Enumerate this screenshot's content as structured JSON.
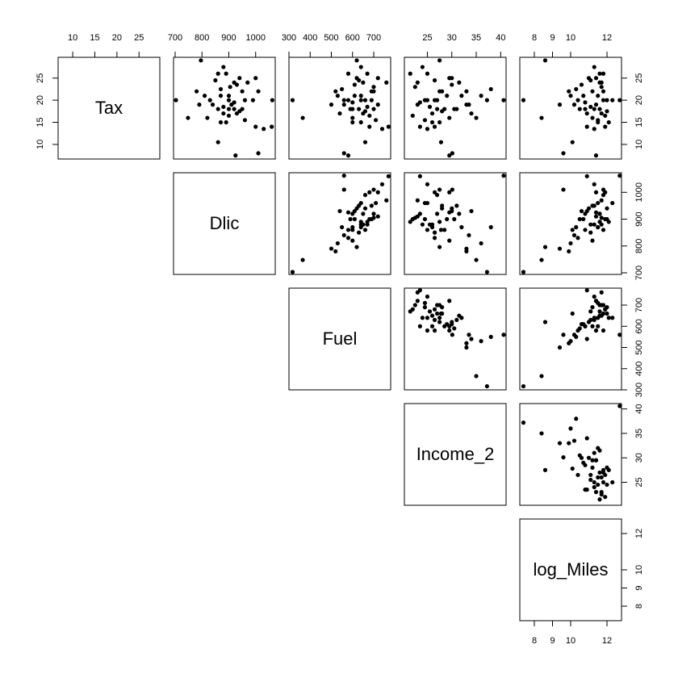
{
  "chart_data": {
    "type": "scatter_matrix",
    "point_color": "#000000",
    "variables": [
      {
        "name": "Tax",
        "lim": [
          6.7,
          29.7
        ],
        "ticks": [
          10,
          15,
          20,
          25
        ],
        "values": [
          20,
          8,
          7.5,
          29,
          14,
          20,
          10.5,
          15,
          16,
          27.5,
          26,
          25,
          24,
          23,
          22,
          22,
          21,
          21,
          20,
          20,
          20,
          19,
          19,
          18.5,
          18,
          18,
          18,
          17,
          17,
          16.5,
          16,
          15.5,
          15,
          14,
          13.5,
          24,
          25,
          22.5,
          21,
          19,
          23.5,
          26,
          17.5,
          20,
          18,
          24.5,
          22,
          19.5
        ]
      },
      {
        "name": "Dlic",
        "lim": [
          694,
          1073
        ],
        "ticks": [
          700,
          800,
          900,
          1000
        ],
        "values": [
          703,
          1010,
          925,
          796,
          1060,
          1062,
          860,
          870,
          748,
          880,
          860,
          940,
          920,
          905,
          780,
          950,
          900,
          870,
          830,
          990,
          900,
          840,
          910,
          880,
          950,
          920,
          860,
          880,
          930,
          900,
          820,
          960,
          890,
          1000,
          1030,
          970,
          1000,
          870,
          810,
          790,
          930,
          890,
          940,
          960,
          900,
          850,
          1010,
          920
        ]
      },
      {
        "name": "Fuel",
        "lim": [
          300,
          780
        ],
        "ticks": [
          300,
          400,
          500,
          600,
          700
        ],
        "values": [
          317,
          560,
          580,
          620,
          770,
          560,
          660,
          600,
          365,
          640,
          580,
          620,
          650,
          700,
          520,
          690,
          610,
          640,
          580,
          660,
          690,
          560,
          720,
          670,
          630,
          700,
          600,
          650,
          540,
          680,
          600,
          710,
          640,
          680,
          740,
          760,
          720,
          550,
          530,
          500,
          610,
          670,
          660,
          640,
          590,
          630,
          700,
          600
        ]
      },
      {
        "name": "Income_2",
        "lim": [
          20.3,
          41.1
        ],
        "ticks": [
          25,
          30,
          35,
          40
        ],
        "values": [
          37.2,
          30.1,
          29.5,
          27.5,
          23.5,
          40.6,
          27.8,
          26.0,
          35.0,
          24.0,
          25.0,
          30.0,
          31.5,
          22.5,
          33.0,
          28.0,
          29.0,
          32.0,
          26.5,
          27.0,
          24.5,
          33.5,
          23.0,
          25.5,
          31.0,
          27.0,
          28.5,
          26.0,
          34.0,
          22.0,
          29.5,
          24.5,
          27.5,
          26.5,
          25.0,
          23.0,
          29.5,
          38.0,
          36.0,
          33.0,
          30.0,
          21.5,
          28.0,
          25.0,
          30.5,
          26.5,
          27.5,
          23.5
        ]
      },
      {
        "name": "log_Miles",
        "lim": [
          7.2,
          12.8
        ],
        "ticks": [
          8,
          9,
          10,
          12
        ],
        "values": [
          7.4,
          9.6,
          11.4,
          8.6,
          10.9,
          12.7,
          10.1,
          11.5,
          8.4,
          11.3,
          11.8,
          11.0,
          11.6,
          11.7,
          9.9,
          11.2,
          10.7,
          11.5,
          10.4,
          11.8,
          12.0,
          10.2,
          11.4,
          11.1,
          11.3,
          11.6,
          10.8,
          11.7,
          10.9,
          11.9,
          11.2,
          11.5,
          12.1,
          11.9,
          11.3,
          11.7,
          11.4,
          10.3,
          10.0,
          9.4,
          10.6,
          11.6,
          12.0,
          12.3,
          10.5,
          11.1,
          11.8,
          10.8
        ]
      }
    ]
  }
}
